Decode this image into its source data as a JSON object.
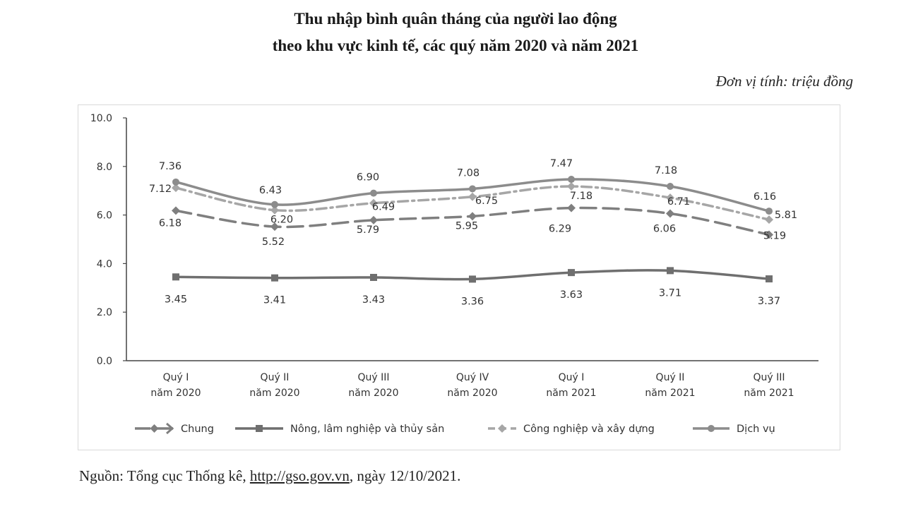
{
  "header": {
    "title_line1": "Thu nhập bình quân tháng của người lao động",
    "title_line2": "theo khu vực kinh tế, các quý năm 2020 và năm 2021",
    "unit": "Đơn vị tính: triệu đồng"
  },
  "footer": {
    "source_prefix": "Nguồn: Tổng cục Thống kê, ",
    "source_link": "http://gso.gov.vn",
    "source_suffix": ", ngày 12/10/2021."
  },
  "chart_data": {
    "type": "line",
    "categories": [
      [
        "Quý I",
        "năm 2020"
      ],
      [
        "Quý II",
        "năm 2020"
      ],
      [
        "Quý III",
        "năm 2020"
      ],
      [
        "Quý IV",
        "năm 2020"
      ],
      [
        "Quý I",
        "năm 2021"
      ],
      [
        "Quý II",
        "năm 2021"
      ],
      [
        "Quý III",
        "năm 2021"
      ]
    ],
    "ylim": [
      0,
      10
    ],
    "yticks": [
      "0.0",
      "2.0",
      "4.0",
      "6.0",
      "8.0",
      "10.0"
    ],
    "grid": false,
    "legend_position": "bottom",
    "series": [
      {
        "name": "Chung",
        "values": [
          6.18,
          5.52,
          5.79,
          5.95,
          6.29,
          6.06,
          5.19
        ],
        "labels": [
          "6.18",
          "5.52",
          "5.79",
          "5.95",
          "6.29",
          "6.06",
          "5.19"
        ],
        "color": "#7f7f7f",
        "dash": "long-dash",
        "marker": "diamond"
      },
      {
        "name": "Nông, lâm nghiệp và thủy sản",
        "values": [
          3.45,
          3.41,
          3.43,
          3.36,
          3.63,
          3.71,
          3.37
        ],
        "labels": [
          "3.45",
          "3.41",
          "3.43",
          "3.36",
          "3.63",
          "3.71",
          "3.37"
        ],
        "color": "#6f6f6f",
        "dash": "solid",
        "marker": "square"
      },
      {
        "name": "Công nghiệp và xây dựng",
        "values": [
          7.12,
          6.2,
          6.49,
          6.75,
          7.18,
          6.71,
          5.81
        ],
        "labels": [
          "7.12",
          "6.20",
          "6.49",
          "6.75",
          "7.18",
          "6.71",
          "5.81"
        ],
        "color": "#a6a6a6",
        "dash": "dash-dot",
        "marker": "diamond"
      },
      {
        "name": "Dịch vụ",
        "values": [
          7.36,
          6.43,
          6.9,
          7.08,
          7.47,
          7.18,
          6.16
        ],
        "labels": [
          "7.36",
          "6.43",
          "6.90",
          "7.08",
          "7.47",
          "7.18",
          "6.16"
        ],
        "color": "#8c8c8c",
        "dash": "solid",
        "marker": "circle"
      }
    ]
  }
}
